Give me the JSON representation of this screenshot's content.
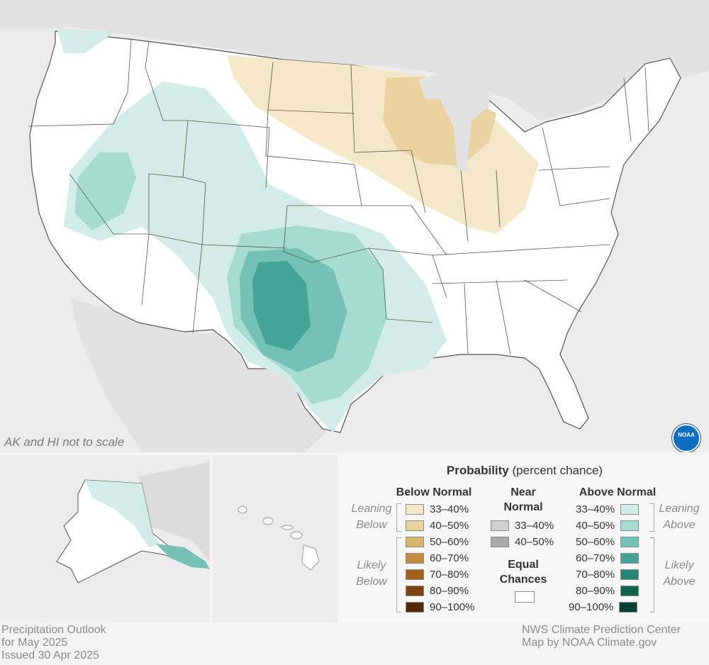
{
  "footer_left": {
    "line1": "Precipitation Outlook",
    "line2": "for May 2025",
    "line3": "Issued 30 Apr 2025"
  },
  "footer_right": {
    "line1": "NWS Climate Prediction Center",
    "line2": "Map by NOAA Climate.gov"
  },
  "map_note": "AK and HI not to scale",
  "logo": {
    "text": "NOAA",
    "icon": "noaa-logo-icon"
  },
  "legend": {
    "title_bold": "Probability",
    "title_rest": "(percent chance)",
    "below_header": "Below Normal",
    "near_header_1": "Near",
    "near_header_2": "Normal",
    "above_header": "Above Normal",
    "equal_header_1": "Equal",
    "equal_header_2": "Chances",
    "leaning_below_1": "Leaning",
    "leaning_below_2": "Below",
    "likely_below_1": "Likely",
    "likely_below_2": "Below",
    "leaning_above_1": "Leaning",
    "leaning_above_2": "Above",
    "likely_above_1": "Likely",
    "likely_above_2": "Above",
    "below": [
      {
        "label": "33–40%",
        "color": "#f5e8c8"
      },
      {
        "label": "40–50%",
        "color": "#ead3a0"
      },
      {
        "label": "50–60%",
        "color": "#d9b56e"
      },
      {
        "label": "60–70%",
        "color": "#c48a3e"
      },
      {
        "label": "70–80%",
        "color": "#a45f1c"
      },
      {
        "label": "80–90%",
        "color": "#7d430f"
      },
      {
        "label": "90–100%",
        "color": "#54290a"
      }
    ],
    "near": [
      {
        "label": "33–40%",
        "color": "#cfcfcf"
      },
      {
        "label": "40–50%",
        "color": "#a9a9a9"
      }
    ],
    "above": [
      {
        "label": "33–40%",
        "color": "#d2ede8"
      },
      {
        "label": "40–50%",
        "color": "#a6dbd2"
      },
      {
        "label": "50–60%",
        "color": "#73c2b5"
      },
      {
        "label": "60–70%",
        "color": "#43a597"
      },
      {
        "label": "70–80%",
        "color": "#258577"
      },
      {
        "label": "80–90%",
        "color": "#11614f"
      },
      {
        "label": "90–100%",
        "color": "#063f33"
      }
    ],
    "equal_color": "#ffffff"
  }
}
